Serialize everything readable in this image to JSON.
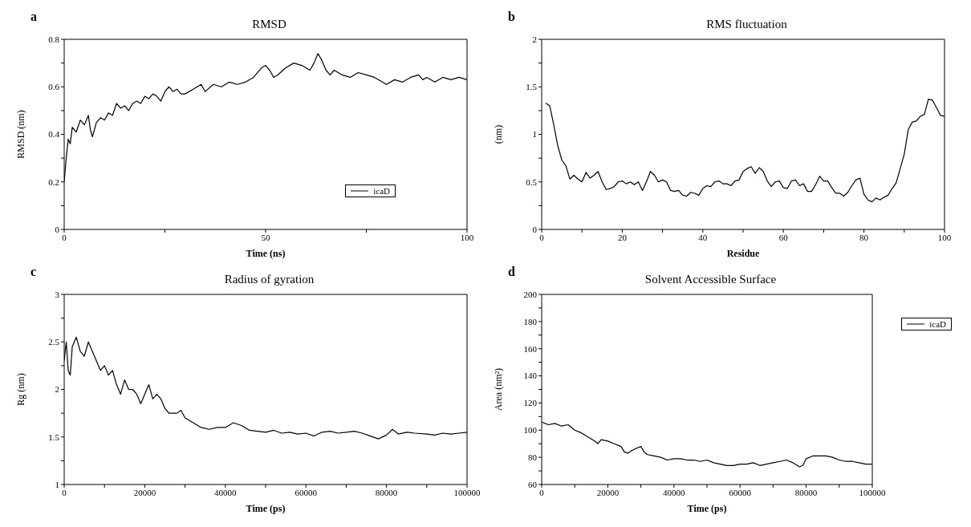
{
  "chart_data": [
    {
      "type": "line",
      "title": "RMSD",
      "xlabel": "Time (ns)",
      "ylabel": "RMSD (nm)",
      "annotations": [
        "a"
      ],
      "legend": "bottom right",
      "xlim": [
        0,
        100
      ],
      "xticks": [
        0,
        {
          "value": 25,
          "label": null
        },
        50,
        {
          "value": 75,
          "label": null
        },
        100
      ],
      "ylim": [
        0,
        0.8
      ],
      "yticks": [
        0,
        {
          "value": 0.1,
          "label": null
        },
        0.2,
        {
          "value": 0.3,
          "label": null
        },
        0.4,
        {
          "value": 0.5,
          "label": null
        },
        0.6,
        {
          "value": 0.7,
          "label": null
        },
        0.8
      ],
      "x": [
        0,
        0.5,
        1,
        1.5,
        2,
        3,
        4,
        5,
        6,
        6.5,
        7,
        8,
        9,
        10,
        11,
        12,
        13,
        14,
        15,
        16,
        17,
        18,
        19,
        20,
        21,
        22,
        23,
        24,
        25,
        26,
        27,
        28,
        29,
        30,
        32,
        34,
        35,
        37,
        39,
        41,
        43,
        45,
        47,
        48,
        49,
        50,
        51,
        52,
        53,
        55,
        57,
        59,
        61,
        62,
        63,
        64,
        65,
        66,
        67,
        69,
        71,
        73,
        75,
        77,
        79,
        80,
        82,
        84,
        86,
        88,
        89,
        90,
        92,
        94,
        96,
        98,
        100
      ],
      "series": [
        {
          "name": "icaD",
          "color": "#000000",
          "values": [
            0.2,
            0.3,
            0.38,
            0.36,
            0.43,
            0.41,
            0.46,
            0.44,
            0.48,
            0.42,
            0.39,
            0.45,
            0.47,
            0.46,
            0.49,
            0.48,
            0.53,
            0.51,
            0.52,
            0.5,
            0.53,
            0.54,
            0.53,
            0.56,
            0.55,
            0.57,
            0.56,
            0.54,
            0.58,
            0.6,
            0.58,
            0.59,
            0.57,
            0.57,
            0.59,
            0.61,
            0.58,
            0.61,
            0.6,
            0.62,
            0.61,
            0.62,
            0.64,
            0.66,
            0.68,
            0.69,
            0.67,
            0.64,
            0.65,
            0.68,
            0.7,
            0.69,
            0.67,
            0.7,
            0.74,
            0.71,
            0.67,
            0.65,
            0.67,
            0.65,
            0.64,
            0.66,
            0.65,
            0.64,
            0.62,
            0.61,
            0.63,
            0.62,
            0.64,
            0.65,
            0.63,
            0.64,
            0.62,
            0.64,
            0.63,
            0.64,
            0.63
          ]
        }
      ]
    },
    {
      "type": "line",
      "title": "RMS fluctuation",
      "xlabel": "Residue",
      "ylabel": "(nm)",
      "annotations": [
        "b"
      ],
      "xlim": [
        0,
        100
      ],
      "xticks": [
        0,
        {
          "value": 10,
          "label": null
        },
        20,
        {
          "value": 30,
          "label": null
        },
        40,
        {
          "value": 50,
          "label": null
        },
        60,
        {
          "value": 70,
          "label": null
        },
        80,
        {
          "value": 90,
          "label": null
        },
        100
      ],
      "ylim": [
        0,
        2
      ],
      "yticks": [
        0,
        {
          "value": 0.25,
          "label": null
        },
        0.5,
        {
          "value": 0.75,
          "label": null
        },
        1,
        {
          "value": 1.25,
          "label": null
        },
        1.5,
        {
          "value": 1.75,
          "label": null
        },
        2
      ],
      "x": [
        1,
        2,
        3,
        4,
        5,
        6,
        7,
        8,
        9,
        10,
        11,
        12,
        13,
        14,
        15,
        16,
        17,
        18,
        19,
        20,
        21,
        22,
        23,
        24,
        25,
        26,
        27,
        28,
        29,
        30,
        31,
        32,
        33,
        34,
        35,
        36,
        37,
        38,
        39,
        40,
        41,
        42,
        43,
        44,
        45,
        46,
        47,
        48,
        49,
        50,
        51,
        52,
        53,
        54,
        55,
        56,
        57,
        58,
        59,
        60,
        61,
        62,
        63,
        64,
        65,
        66,
        67,
        68,
        69,
        70,
        71,
        72,
        73,
        74,
        75,
        76,
        77,
        78,
        79,
        80,
        81,
        82,
        83,
        84,
        85,
        86,
        87,
        88,
        89,
        90,
        91,
        92,
        93,
        94,
        95,
        96,
        97,
        98,
        99,
        100
      ],
      "series": [
        {
          "color": "#000000",
          "values": [
            1.33,
            1.3,
            1.1,
            0.88,
            0.73,
            0.67,
            0.53,
            0.57,
            0.53,
            0.5,
            0.6,
            0.54,
            0.57,
            0.61,
            0.5,
            0.42,
            0.43,
            0.45,
            0.5,
            0.51,
            0.48,
            0.5,
            0.47,
            0.5,
            0.41,
            0.5,
            0.61,
            0.57,
            0.5,
            0.52,
            0.5,
            0.41,
            0.4,
            0.41,
            0.36,
            0.35,
            0.39,
            0.38,
            0.36,
            0.43,
            0.46,
            0.45,
            0.5,
            0.51,
            0.48,
            0.48,
            0.46,
            0.51,
            0.52,
            0.61,
            0.64,
            0.66,
            0.59,
            0.65,
            0.61,
            0.51,
            0.45,
            0.5,
            0.51,
            0.44,
            0.43,
            0.51,
            0.52,
            0.46,
            0.48,
            0.4,
            0.4,
            0.47,
            0.56,
            0.51,
            0.51,
            0.44,
            0.38,
            0.38,
            0.35,
            0.39,
            0.46,
            0.52,
            0.54,
            0.37,
            0.31,
            0.29,
            0.33,
            0.31,
            0.34,
            0.36,
            0.43,
            0.49,
            0.64,
            0.79,
            1.05,
            1.13,
            1.14,
            1.19,
            1.21,
            1.37,
            1.36,
            1.28,
            1.2,
            1.19
          ]
        }
      ]
    },
    {
      "type": "line",
      "title": "Radius of gyration",
      "xlabel": "Time (ps)",
      "ylabel": "Rg (nm)",
      "annotations": [
        "c"
      ],
      "xlim": [
        0,
        100000
      ],
      "xticks": [
        0,
        {
          "value": 10000,
          "label": null
        },
        20000,
        {
          "value": 30000,
          "label": null
        },
        40000,
        {
          "value": 50000,
          "label": null
        },
        60000,
        {
          "value": 70000,
          "label": null
        },
        80000,
        {
          "value": 90000,
          "label": null
        },
        100000
      ],
      "ylim": [
        1,
        3
      ],
      "yticks": [
        1,
        {
          "value": 1.25,
          "label": null
        },
        1.5,
        {
          "value": 1.75,
          "label": null
        },
        2,
        {
          "value": 2.25,
          "label": null
        },
        2.5,
        {
          "value": 2.75,
          "label": null
        },
        3
      ],
      "x": [
        0,
        500,
        1000,
        1500,
        2000,
        3000,
        4000,
        5000,
        6000,
        7000,
        8000,
        9000,
        10000,
        11000,
        12000,
        13000,
        14000,
        15000,
        16000,
        17000,
        18000,
        19000,
        20000,
        21000,
        22000,
        23000,
        24000,
        25000,
        26000,
        28000,
        29000,
        30000,
        32000,
        34000,
        36000,
        38000,
        40000,
        42000,
        44000,
        46000,
        48000,
        50000,
        52000,
        54000,
        56000,
        58000,
        60000,
        62000,
        64000,
        66000,
        68000,
        70000,
        72000,
        74000,
        76000,
        78000,
        80000,
        81500,
        83000,
        85000,
        87000,
        90000,
        92000,
        94000,
        96000,
        98000,
        100000
      ],
      "series": [
        {
          "color": "#000000",
          "values": [
            2.3,
            2.5,
            2.2,
            2.15,
            2.45,
            2.55,
            2.4,
            2.35,
            2.5,
            2.4,
            2.3,
            2.2,
            2.25,
            2.15,
            2.2,
            2.05,
            1.95,
            2.1,
            2.0,
            2.0,
            1.95,
            1.85,
            1.95,
            2.05,
            1.9,
            1.95,
            1.9,
            1.8,
            1.75,
            1.75,
            1.78,
            1.7,
            1.65,
            1.6,
            1.58,
            1.6,
            1.6,
            1.65,
            1.62,
            1.57,
            1.56,
            1.55,
            1.57,
            1.54,
            1.55,
            1.53,
            1.54,
            1.51,
            1.55,
            1.56,
            1.54,
            1.55,
            1.56,
            1.54,
            1.51,
            1.48,
            1.52,
            1.58,
            1.53,
            1.55,
            1.54,
            1.53,
            1.52,
            1.54,
            1.53,
            1.54,
            1.55
          ]
        }
      ]
    },
    {
      "type": "line",
      "title": "Solvent Accessible Surface",
      "xlabel": "Time (ps)",
      "ylabel": "Area (nm²)",
      "annotations": [
        "d"
      ],
      "legend": "right",
      "xlim": [
        0,
        100000
      ],
      "xticks": [
        0,
        {
          "value": 10000,
          "label": null
        },
        20000,
        {
          "value": 30000,
          "label": null
        },
        40000,
        {
          "value": 50000,
          "label": null
        },
        60000,
        {
          "value": 70000,
          "label": null
        },
        80000,
        {
          "value": 90000,
          "label": null
        },
        100000
      ],
      "ylim": [
        60,
        200
      ],
      "yticks": [
        60,
        {
          "value": 70,
          "label": null
        },
        80,
        {
          "value": 90,
          "label": null
        },
        100,
        {
          "value": 110,
          "label": null
        },
        120,
        {
          "value": 130,
          "label": null
        },
        140,
        {
          "value": 150,
          "label": null
        },
        160,
        {
          "value": 170,
          "label": null
        },
        180,
        {
          "value": 190,
          "label": null
        },
        200
      ],
      "x": [
        0,
        2000,
        4000,
        6000,
        8000,
        10000,
        12000,
        14000,
        16000,
        17000,
        18000,
        20000,
        22000,
        24000,
        25000,
        26000,
        28000,
        30000,
        31000,
        32000,
        34000,
        36000,
        38000,
        40000,
        42000,
        44000,
        46000,
        48000,
        50000,
        52000,
        54000,
        56000,
        58000,
        60000,
        62000,
        64000,
        66000,
        68000,
        70000,
        72000,
        74000,
        76000,
        78000,
        79000,
        80000,
        82000,
        84000,
        86000,
        88000,
        90000,
        92000,
        94000,
        96000,
        98000,
        100000
      ],
      "series": [
        {
          "name": "icaD",
          "color": "#000000",
          "values": [
            106,
            104,
            105,
            103,
            104,
            100,
            98,
            95,
            92,
            90,
            93,
            92,
            90,
            88,
            84,
            83,
            86,
            88,
            84,
            82,
            81,
            80,
            78,
            79,
            79,
            78,
            78,
            77,
            78,
            76,
            75,
            74,
            74,
            75,
            75,
            76,
            74,
            75,
            76,
            77,
            78,
            76,
            73,
            74,
            79,
            81,
            81,
            81,
            80,
            78,
            77,
            77,
            76,
            75,
            75
          ]
        }
      ]
    }
  ]
}
